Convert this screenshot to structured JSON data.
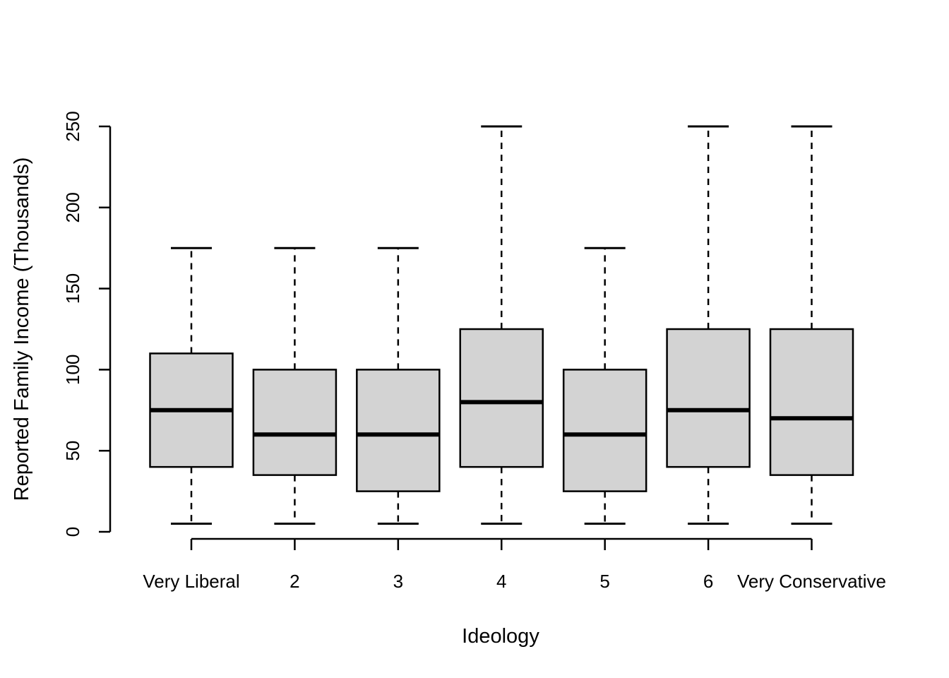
{
  "chart_data": {
    "type": "boxplot",
    "title": "",
    "xlabel": "Ideology",
    "ylabel": "Reported Family Income (Thousands)",
    "categories": [
      "Very Liberal",
      "2",
      "3",
      "4",
      "5",
      "6",
      "Very Conservative"
    ],
    "y_ticks": [
      0,
      50,
      100,
      150,
      200,
      250
    ],
    "ylim": [
      0,
      250
    ],
    "grid": false,
    "legend": null,
    "series": [
      {
        "category": "Very Liberal",
        "lower_whisker": 5,
        "q1": 40,
        "median": 75,
        "q3": 110,
        "upper_whisker": 175
      },
      {
        "category": "2",
        "lower_whisker": 5,
        "q1": 35,
        "median": 60,
        "q3": 100,
        "upper_whisker": 175
      },
      {
        "category": "3",
        "lower_whisker": 5,
        "q1": 25,
        "median": 60,
        "q3": 100,
        "upper_whisker": 175
      },
      {
        "category": "4",
        "lower_whisker": 5,
        "q1": 40,
        "median": 80,
        "q3": 125,
        "upper_whisker": 250
      },
      {
        "category": "5",
        "lower_whisker": 5,
        "q1": 25,
        "median": 60,
        "q3": 100,
        "upper_whisker": 175
      },
      {
        "category": "6",
        "lower_whisker": 5,
        "q1": 40,
        "median": 75,
        "q3": 125,
        "upper_whisker": 250
      },
      {
        "category": "Very Conservative",
        "lower_whisker": 5,
        "q1": 35,
        "median": 70,
        "q3": 125,
        "upper_whisker": 250
      }
    ],
    "colors": {
      "box_fill": "#D3D3D3",
      "line": "#000000",
      "background": "#FFFFFF"
    }
  }
}
